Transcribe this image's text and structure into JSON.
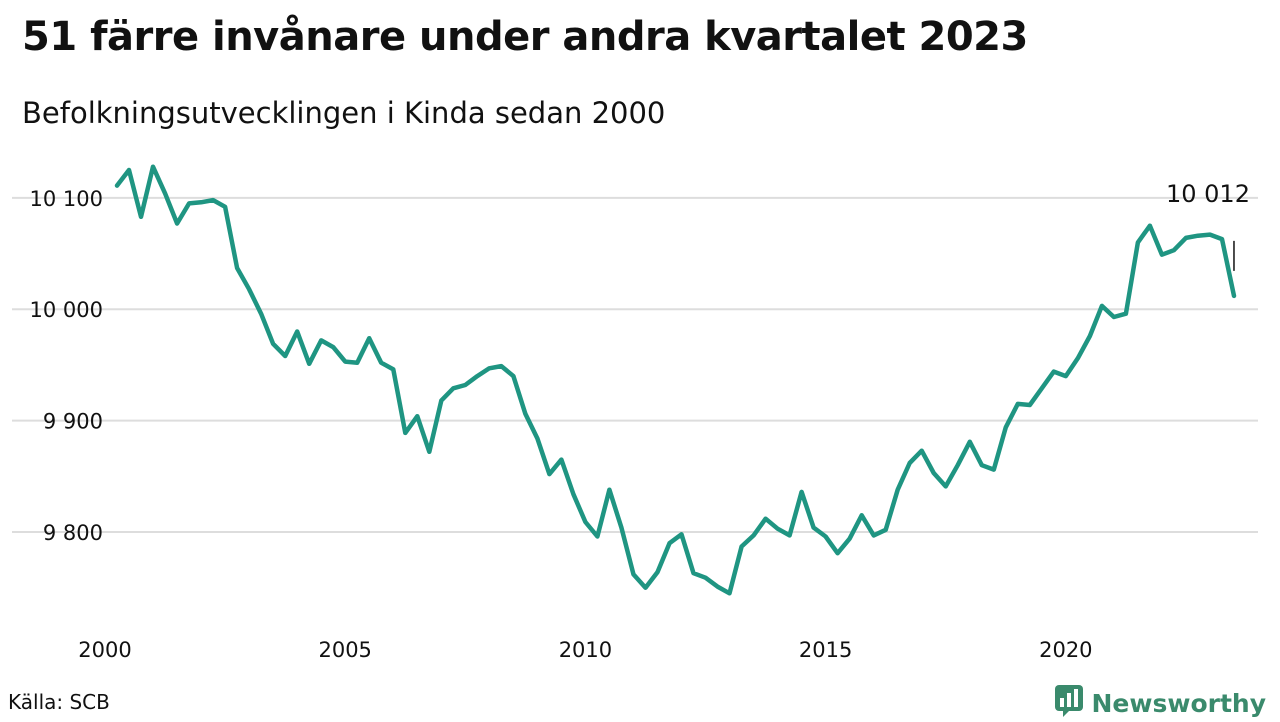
{
  "header": {
    "title": "51 färre invånare under andra kvartalet 2023",
    "subtitle": "Befolkningsutvecklingen i Kinda sedan 2000"
  },
  "footer": {
    "source": "Källa: SCB",
    "brand": "Newsworthy"
  },
  "colors": {
    "line": "#1f9582",
    "grid": "#dddddd",
    "brand": "#3a8a6c"
  },
  "chart_data": {
    "type": "line",
    "title": "51 färre invånare under andra kvartalet 2023",
    "subtitle": "Befolkningsutvecklingen i Kinda sedan 2000",
    "xlabel": "",
    "ylabel": "",
    "xlim": [
      2000,
      2024.0
    ],
    "ylim": [
      9730,
      10125
    ],
    "x_ticks": [
      2000,
      2005,
      2010,
      2015,
      2020
    ],
    "x_tick_labels": [
      "2000",
      "2005",
      "2010",
      "2015",
      "2020"
    ],
    "y_ticks": [
      9800,
      9900,
      10000,
      10100
    ],
    "y_tick_labels": [
      "9 800",
      "9 900",
      "10 000",
      "10 100"
    ],
    "grid": "horizontal",
    "end_label": "10 012",
    "x": [
      2000.25,
      2000.5,
      2000.75,
      2001,
      2001.25,
      2001.5,
      2001.75,
      2002,
      2002.25,
      2002.5,
      2002.75,
      2003,
      2003.25,
      2003.5,
      2003.75,
      2004,
      2004.25,
      2004.5,
      2004.75,
      2005,
      2005.25,
      2005.5,
      2005.75,
      2006,
      2006.25,
      2006.5,
      2006.75,
      2007,
      2007.25,
      2007.5,
      2007.75,
      2008,
      2008.25,
      2008.5,
      2008.75,
      2009,
      2009.25,
      2009.5,
      2009.75,
      2010,
      2010.25,
      2010.5,
      2010.75,
      2011,
      2011.25,
      2011.5,
      2011.75,
      2012,
      2012.25,
      2012.5,
      2012.75,
      2013,
      2013.25,
      2013.5,
      2013.75,
      2014,
      2014.25,
      2014.5,
      2014.75,
      2015,
      2015.25,
      2015.5,
      2015.75,
      2016,
      2016.25,
      2016.5,
      2016.75,
      2017,
      2017.25,
      2017.5,
      2017.75,
      2018,
      2018.25,
      2018.5,
      2018.75,
      2019,
      2019.25,
      2019.5,
      2019.75,
      2020,
      2020.25,
      2020.5,
      2020.75,
      2021,
      2021.25,
      2021.5,
      2021.75,
      2022,
      2022.25,
      2022.5,
      2022.75,
      2023,
      2023.25,
      2023.5
    ],
    "series": [
      {
        "values": [
          10111,
          10125,
          10083,
          10128,
          10104,
          10077,
          10095,
          10096,
          10098,
          10092,
          10037,
          10018,
          9996,
          9969,
          9958,
          9980,
          9951,
          9972,
          9966,
          9953,
          9952,
          9974,
          9952,
          9946,
          9889,
          9904,
          9872,
          9918,
          9929,
          9932,
          9940,
          9947,
          9949,
          9940,
          9906,
          9884,
          9852,
          9865,
          9834,
          9809,
          9796,
          9838,
          9804,
          9762,
          9750,
          9764,
          9790,
          9798,
          9763,
          9759,
          9751,
          9745,
          9787,
          9797,
          9812,
          9803,
          9797,
          9836,
          9804,
          9796,
          9781,
          9794,
          9815,
          9797,
          9802,
          9838,
          9862,
          9873,
          9853,
          9841,
          9860,
          9881,
          9860,
          9856,
          9894,
          9915,
          9914,
          9929,
          9944,
          9940,
          9956,
          9976,
          10003,
          9993,
          9996,
          10060,
          10075,
          10049,
          10053,
          10064,
          10066,
          10067,
          10063,
          10012
        ]
      }
    ]
  }
}
